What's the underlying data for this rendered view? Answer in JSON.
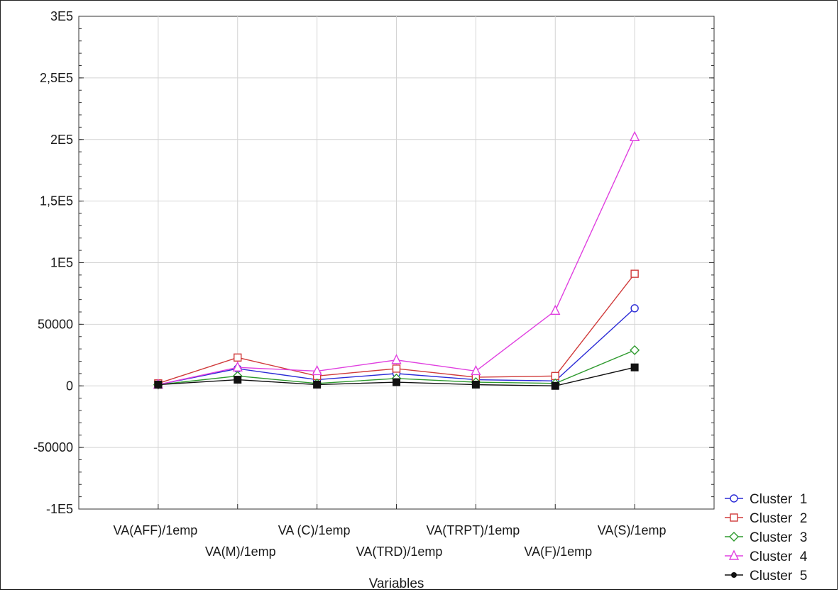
{
  "chart_data": {
    "type": "line",
    "title": "",
    "xlabel": "Variables",
    "ylabel": "",
    "categories": [
      "VA(AFF)/1emp",
      "VA(M)/1emp",
      "VA (C)/1emp",
      "VA(TRD)/1emp",
      "VA(TRPT)/1emp",
      "VA(F)/1emp",
      "VA(S)/1emp"
    ],
    "y_ticks": [
      {
        "value": -100000,
        "label": "-1E5"
      },
      {
        "value": -50000,
        "label": "-50000"
      },
      {
        "value": 0,
        "label": "0"
      },
      {
        "value": 50000,
        "label": "50000"
      },
      {
        "value": 100000,
        "label": "1E5"
      },
      {
        "value": 150000,
        "label": "1,5E5"
      },
      {
        "value": 200000,
        "label": "2E5"
      },
      {
        "value": 250000,
        "label": "2,5E5"
      },
      {
        "value": 300000,
        "label": "3E5"
      }
    ],
    "ylim": [
      -100000,
      300000
    ],
    "grid": true,
    "legend_position": "bottom-right",
    "series": [
      {
        "name": "Cluster  1",
        "color": "#2b2bd6",
        "marker": "circle",
        "values": [
          1000,
          14000,
          5000,
          10000,
          5000,
          4000,
          63000
        ]
      },
      {
        "name": "Cluster  2",
        "color": "#d03a3a",
        "marker": "square",
        "values": [
          2000,
          23000,
          8000,
          14000,
          7000,
          8000,
          91000
        ]
      },
      {
        "name": "Cluster  3",
        "color": "#2e9a2e",
        "marker": "diamond",
        "values": [
          1000,
          8000,
          2000,
          6000,
          3000,
          2000,
          29000
        ]
      },
      {
        "name": "Cluster  4",
        "color": "#e040e0",
        "marker": "triangle",
        "values": [
          1000,
          15000,
          12000,
          21000,
          12000,
          61000,
          202000
        ]
      },
      {
        "name": "Cluster  5",
        "color": "#111111",
        "marker": "filled-circle",
        "values": [
          1000,
          5000,
          1000,
          3000,
          1000,
          0,
          15000
        ]
      }
    ]
  }
}
